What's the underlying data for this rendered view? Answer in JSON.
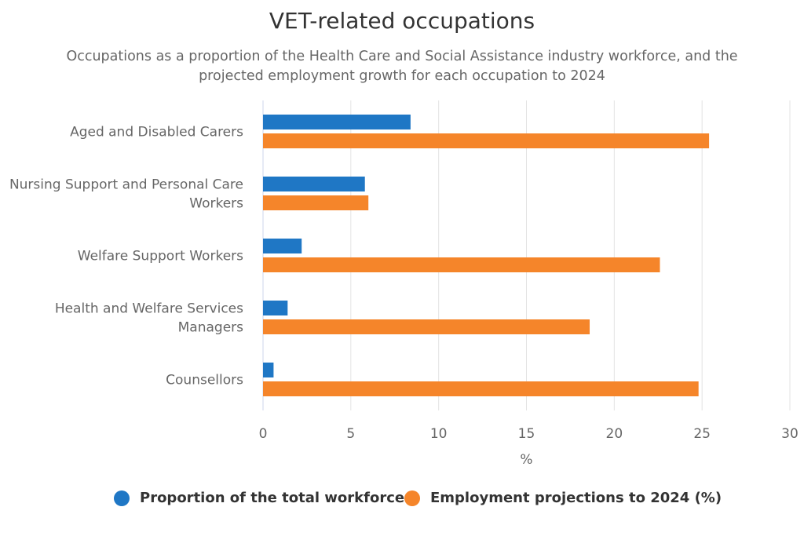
{
  "chart_data": {
    "type": "bar",
    "orientation": "horizontal",
    "title": "VET-related occupations",
    "subtitle_line1": "Occupations as a proportion of the Health Care and Social Assistance industry workforce, and the",
    "subtitle_line2": "projected employment growth for each occupation to 2024",
    "categories": [
      [
        "Aged and Disabled Carers"
      ],
      [
        "Nursing Support and Personal Care",
        "Workers"
      ],
      [
        "Welfare Support Workers"
      ],
      [
        "Health and Welfare Services",
        "Managers"
      ],
      [
        "Counsellors"
      ]
    ],
    "series": [
      {
        "name": "Proportion of the total workforce",
        "color": "#1f77c5",
        "values": [
          8.4,
          5.8,
          2.2,
          1.4,
          0.6
        ]
      },
      {
        "name": "Employment projections to 2024 (%)",
        "color": "#f5852a",
        "values": [
          25.4,
          6.0,
          22.6,
          18.6,
          24.8
        ]
      }
    ],
    "xlabel": "%",
    "xlim": [
      0,
      30
    ],
    "xticks": [
      "0",
      "5",
      "10",
      "15",
      "20",
      "25",
      "30"
    ],
    "grid": true,
    "legend_position": "bottom"
  }
}
